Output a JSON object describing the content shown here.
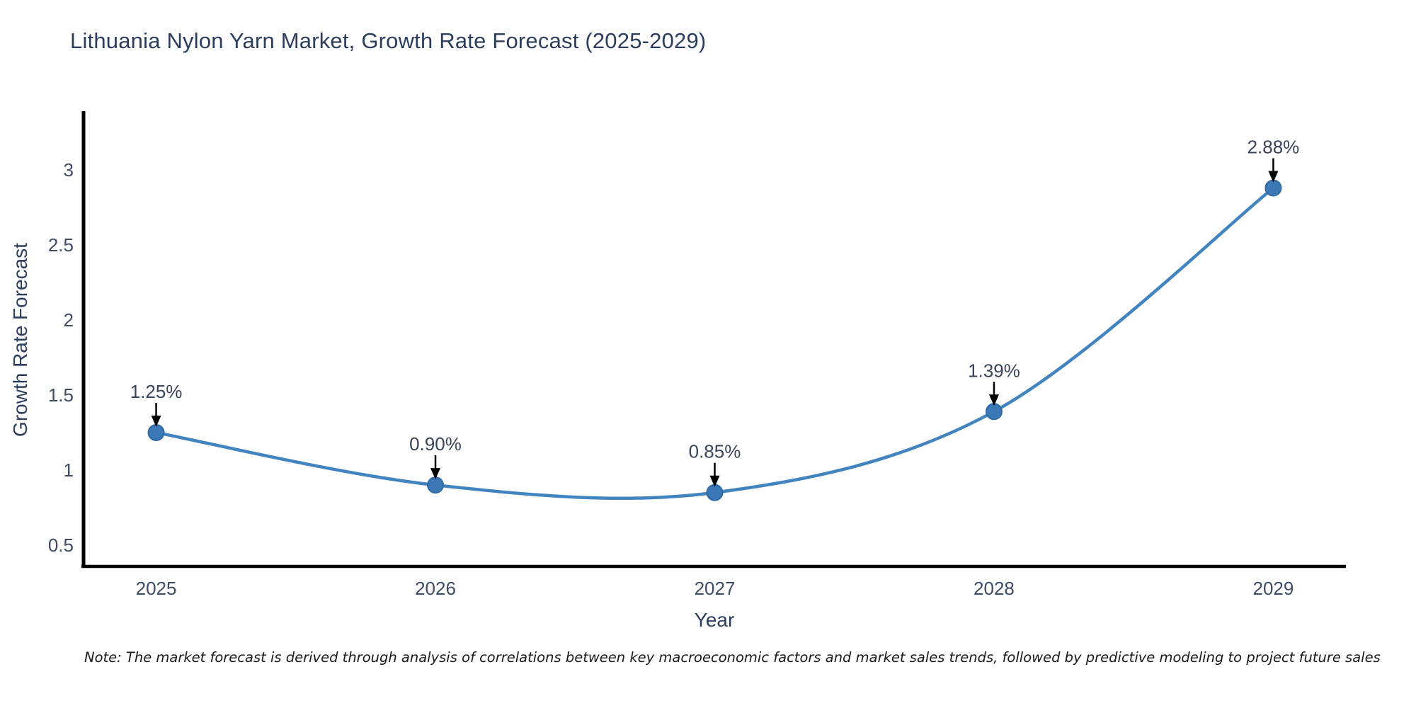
{
  "title": "Lithuania Nylon Yarn Market, Growth Rate Forecast (2025-2029)",
  "note": "Note: The market forecast is derived through analysis of correlations between key macroeconomic factors and market sales trends, followed by predictive modeling to project future sales",
  "chart_data": {
    "type": "line",
    "line_shape": "spline",
    "title": "Lithuania Nylon Yarn Market, Growth Rate Forecast (2025-2029)",
    "xlabel": "Year",
    "ylabel": "Growth Rate Forecast",
    "x": [
      2025,
      2026,
      2027,
      2028,
      2029
    ],
    "values": [
      1.25,
      0.9,
      0.85,
      1.39,
      2.88
    ],
    "point_labels": [
      "1.25%",
      "0.90%",
      "0.85%",
      "1.39%",
      "2.88%"
    ],
    "xticks": [
      "2025",
      "2026",
      "2027",
      "2028",
      "2029"
    ],
    "yticks": [
      "3",
      "2.5",
      "2",
      "1.5",
      "1",
      "0.5"
    ],
    "ytick_values": [
      3,
      2.5,
      2,
      1.5,
      1,
      0.5
    ],
    "xlim": [
      2024.74,
      2029.26
    ],
    "ylim": [
      0.358,
      3.392
    ],
    "grid": false,
    "legend": "none",
    "colors": {
      "line": "#4284bf",
      "marker": "#3b78b5",
      "marker_edge": "#2e6aa5",
      "arrow": "#000000",
      "axis_line": "#000000",
      "title_text": "#2c3e5d",
      "tick_text": "#3e4c66",
      "annotation_text": "#39445a",
      "note_text": "#1a1a1a",
      "background": "#ffffff"
    }
  }
}
